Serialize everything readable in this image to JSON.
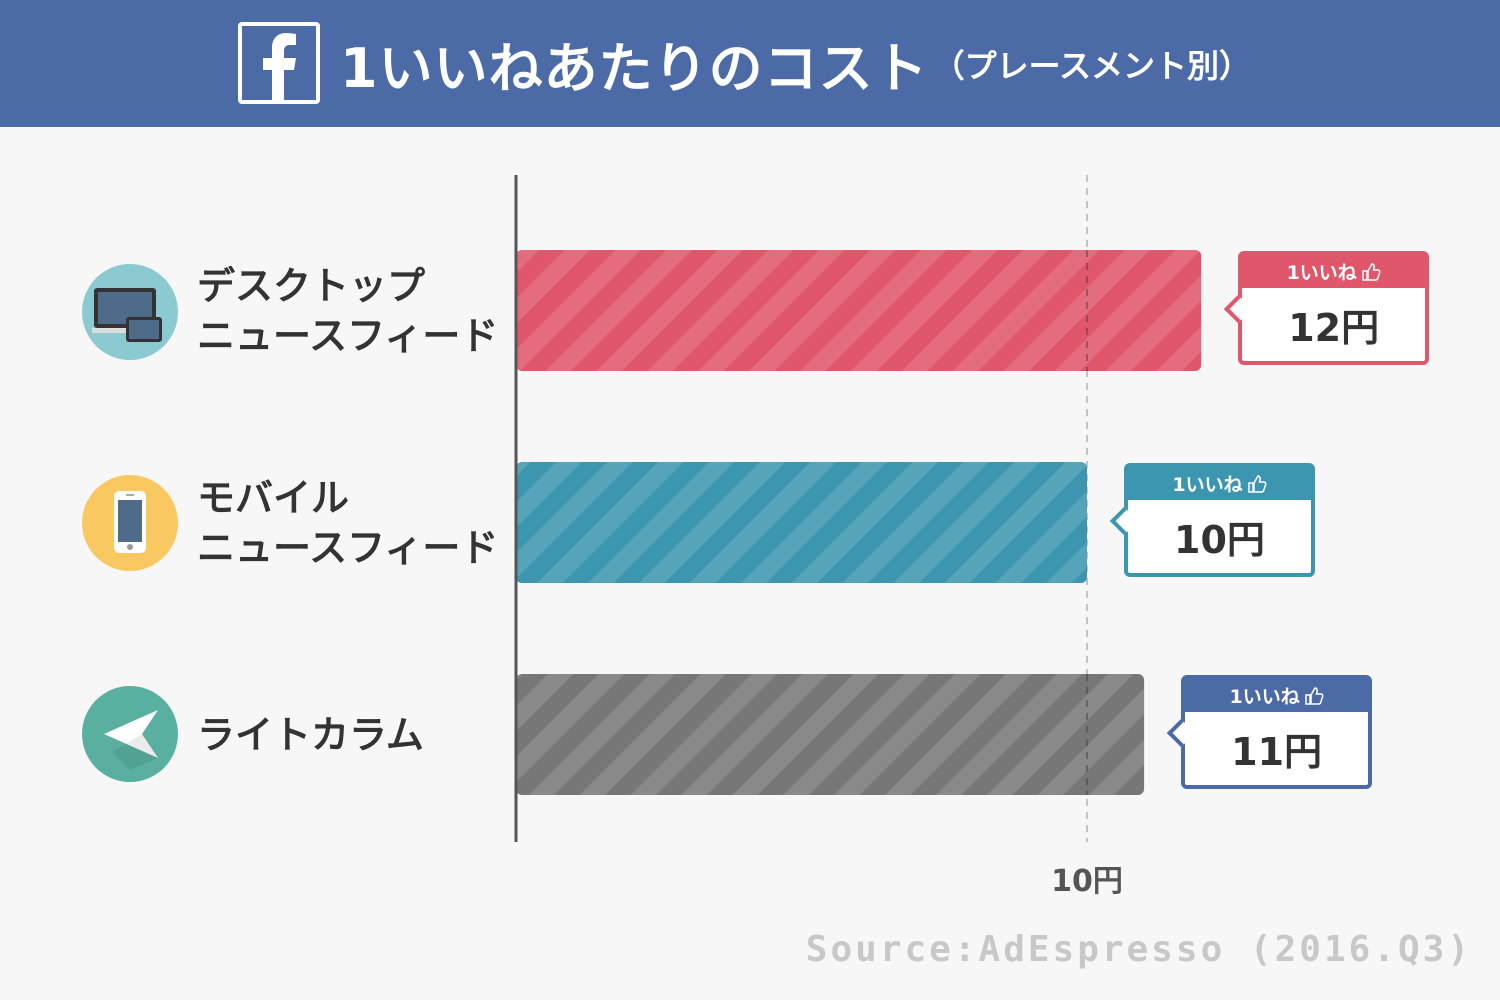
{
  "header": {
    "title": "1いいねあたりのコスト",
    "subtitle": "（プレースメント別）",
    "logo_icon": "facebook-f-icon",
    "background": "#4b6aa6"
  },
  "chart_data": {
    "type": "bar",
    "orientation": "horizontal",
    "categories": [
      "デスクトップ\nニュースフィード",
      "モバイル\nニュースフィード",
      "ライトカラム"
    ],
    "values": [
      12,
      10,
      11
    ],
    "value_labels": [
      "12円",
      "10円",
      "11円"
    ],
    "callout_header": "1いいね",
    "colors": [
      "#e0566b",
      "#3d96b0",
      "#777777"
    ],
    "category_icons": [
      "desktop-devices-icon",
      "smartphone-icon",
      "arrow-pointer-icon"
    ],
    "icon_colors": [
      "#8ccad1",
      "#fac861",
      "#5ab0a0"
    ],
    "xtick_values": [
      10
    ],
    "xtick_labels": [
      "10円"
    ],
    "grid": "dashed line at tick",
    "xlabel": "",
    "ylabel": ""
  },
  "source": "Source:AdEspresso (2016.Q3)"
}
